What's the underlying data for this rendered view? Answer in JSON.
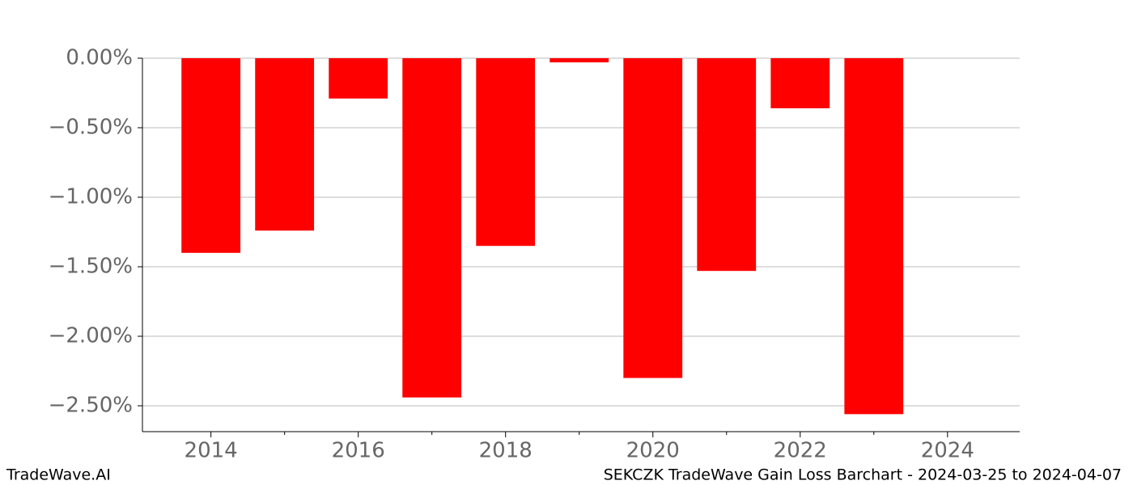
{
  "chart_data": {
    "type": "bar",
    "title": "SEKCZK TradeWave Gain Loss Barchart - 2024-03-25 to 2024-04-07",
    "brand": "TradeWave.AI",
    "x": [
      2014,
      2015,
      2016,
      2017,
      2018,
      2019,
      2020,
      2021,
      2022,
      2023
    ],
    "values": [
      -1.4,
      -1.24,
      -0.29,
      -2.44,
      -1.35,
      -0.03,
      -2.3,
      -1.53,
      -0.36,
      -2.56
    ],
    "color": "#ff0000",
    "xlim": [
      2013.07,
      2024.98
    ],
    "xticks": [
      2014,
      2016,
      2018,
      2020,
      2022,
      2024
    ],
    "xminorticks": [
      2015,
      2017,
      2019,
      2021,
      2023
    ],
    "ylim": [
      -2.686,
      0
    ],
    "yticks": [
      {
        "value": 0,
        "label": "0.00%"
      },
      {
        "value": -0.5,
        "label": "−0.50%"
      },
      {
        "value": -1,
        "label": "−1.00%"
      },
      {
        "value": -1.5,
        "label": "−1.50%"
      },
      {
        "value": -2,
        "label": "−2.00%"
      },
      {
        "value": -2.5,
        "label": "−2.50%"
      }
    ],
    "grid": true
  }
}
